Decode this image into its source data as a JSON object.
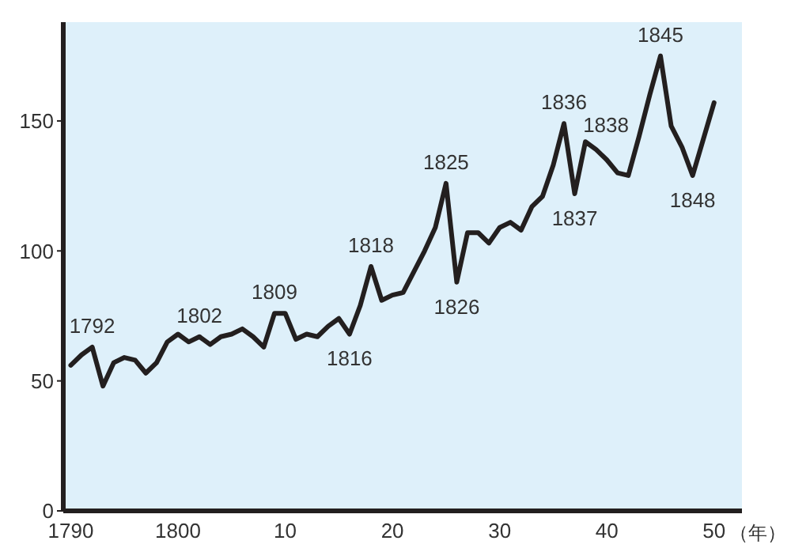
{
  "chart_data": {
    "type": "line",
    "xlabel": "（年）",
    "x": [
      1790,
      1791,
      1792,
      1793,
      1794,
      1795,
      1796,
      1797,
      1798,
      1799,
      1800,
      1801,
      1802,
      1803,
      1804,
      1805,
      1806,
      1807,
      1808,
      1809,
      1810,
      1811,
      1812,
      1813,
      1814,
      1815,
      1816,
      1817,
      1818,
      1819,
      1820,
      1821,
      1822,
      1823,
      1824,
      1825,
      1826,
      1827,
      1828,
      1829,
      1830,
      1831,
      1832,
      1833,
      1834,
      1835,
      1836,
      1837,
      1838,
      1839,
      1840,
      1841,
      1842,
      1843,
      1844,
      1845,
      1846,
      1847,
      1848,
      1849,
      1850
    ],
    "series": [
      {
        "color": "#231f1f",
        "values": [
          56,
          60,
          63,
          48,
          57,
          59,
          58,
          53,
          57,
          65,
          68,
          65,
          67,
          64,
          67,
          68,
          70,
          67,
          63,
          76,
          76,
          66,
          68,
          67,
          71,
          74,
          68,
          79,
          94,
          81,
          83,
          84,
          92,
          100,
          109,
          126,
          88,
          107,
          107,
          103,
          109,
          111,
          108,
          117,
          121,
          133,
          149,
          122,
          142,
          139,
          135,
          130,
          129,
          144,
          160,
          175,
          148,
          140,
          129,
          143,
          157
        ]
      }
    ],
    "xlim": [
      1789.3,
      1852.6
    ],
    "ylim": [
      0,
      188
    ],
    "xticks": [
      1790,
      1800,
      {
        "value": 1810,
        "label": "10"
      },
      {
        "value": 1820,
        "label": "20"
      },
      {
        "value": 1830,
        "label": "30"
      },
      {
        "value": 1840,
        "label": "40"
      },
      {
        "value": 1850,
        "label": "50"
      }
    ],
    "yticks": [
      0,
      50,
      100,
      150
    ],
    "grid": false,
    "legend": false,
    "marker": "none",
    "line_style": "solid",
    "annotations": [
      {
        "text": "1792",
        "x": 1792,
        "y": 63
      },
      {
        "text": "1802",
        "x": 1802,
        "y": 67
      },
      {
        "text": "1809",
        "x": 1809,
        "y": 76
      },
      {
        "text": "1816",
        "x": 1816,
        "y": 68
      },
      {
        "text": "1818",
        "x": 1818,
        "y": 94
      },
      {
        "text": "1825",
        "x": 1825,
        "y": 126
      },
      {
        "text": "1826",
        "x": 1826,
        "y": 88
      },
      {
        "text": "1836",
        "x": 1836,
        "y": 149
      },
      {
        "text": "1837",
        "x": 1837,
        "y": 122
      },
      {
        "text": "1838",
        "x": 1838,
        "y": 142
      },
      {
        "text": "1845",
        "x": 1845,
        "y": 175
      },
      {
        "text": "1848",
        "x": 1848,
        "y": 129
      }
    ]
  }
}
